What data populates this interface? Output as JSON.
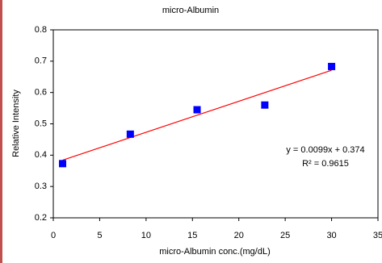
{
  "chart_data": {
    "type": "scatter",
    "title": "micro-Albumin",
    "x_label": "micro-Albumin conc.(mg/dL)",
    "y_label": "Relative Intensity",
    "series": [
      {
        "name": "micro-Albumin",
        "color": "#0000ff",
        "x": [
          1,
          8.3,
          15.5,
          22.8,
          30
        ],
        "values": [
          0.373,
          0.467,
          0.545,
          0.56,
          0.683
        ]
      }
    ],
    "trendline": {
      "slope": 0.0099,
      "intercept": 0.374,
      "x_range": [
        1,
        30
      ],
      "color": "#ff0000"
    },
    "annotations": [
      "y = 0.0099x + 0.374",
      "R² = 0.9615"
    ],
    "xlim": [
      0,
      35
    ],
    "xticks": [
      0,
      5,
      10,
      15,
      20,
      25,
      30,
      35
    ],
    "ylim": [
      0.2,
      0.8
    ],
    "yticks": [
      0.2,
      0.3,
      0.4,
      0.5,
      0.6,
      0.7,
      0.8
    ],
    "grid": false
  }
}
